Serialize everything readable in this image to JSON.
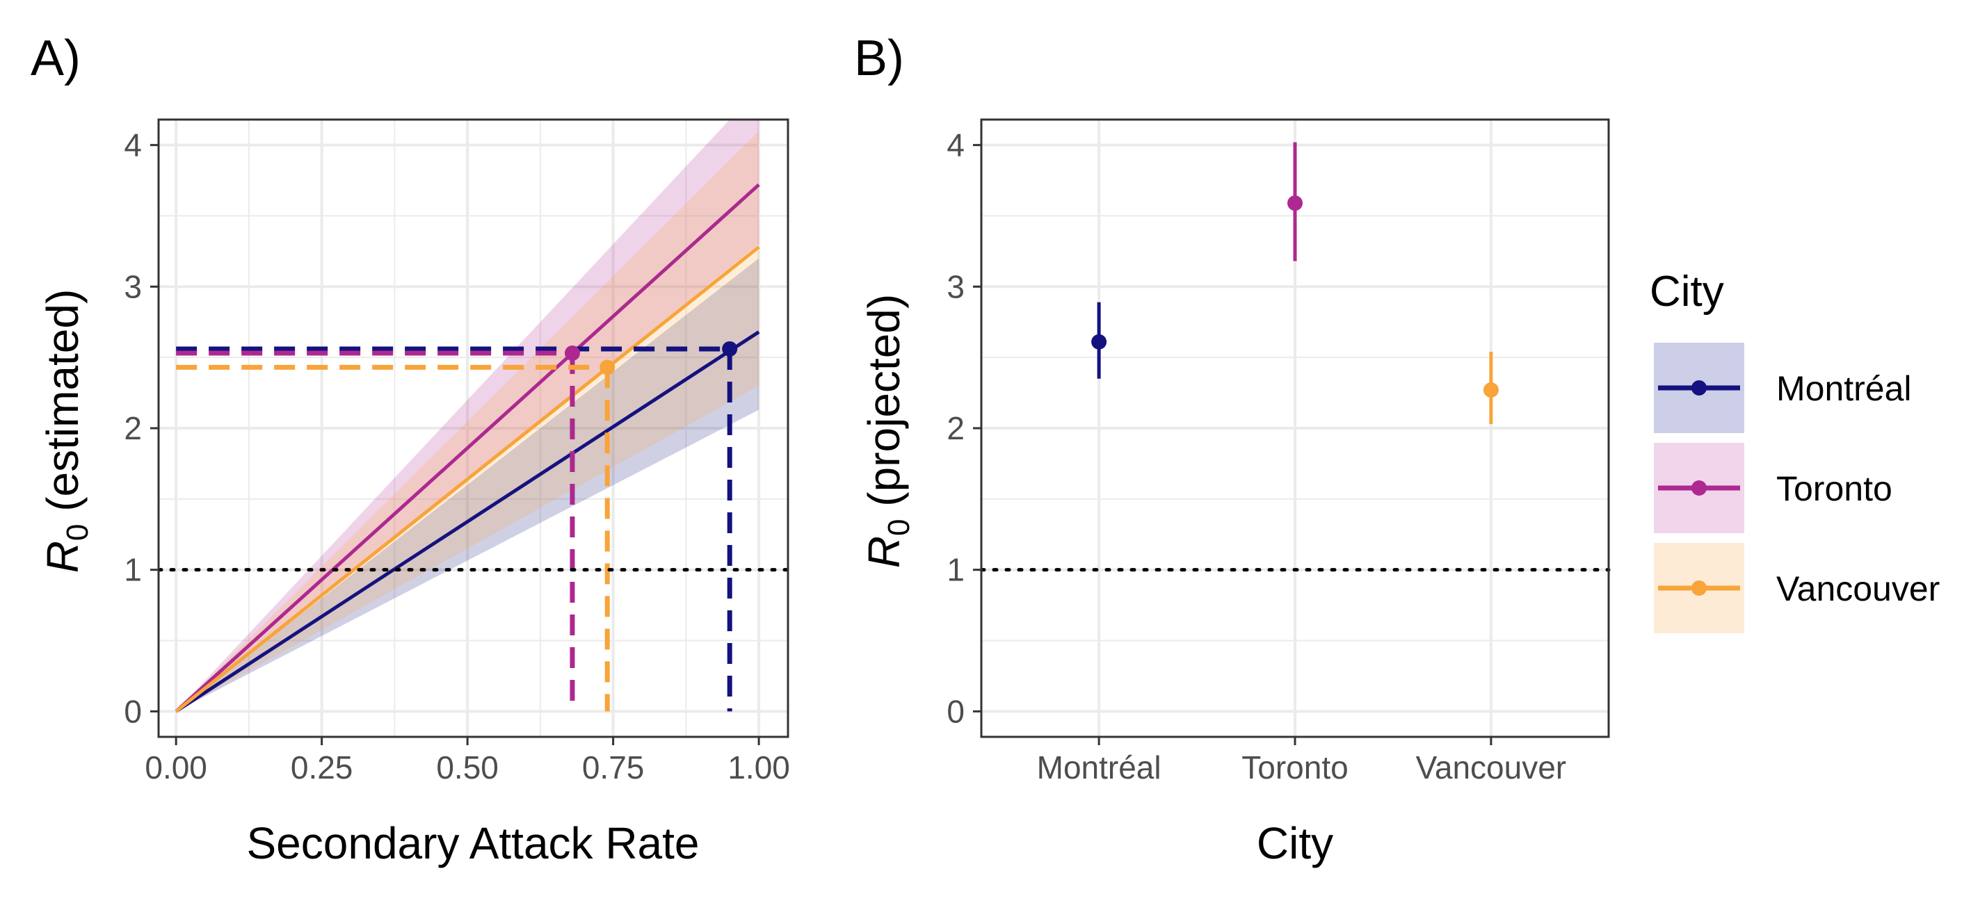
{
  "panels": {
    "a_label": "A)",
    "b_label": "B)"
  },
  "legend": {
    "title": "City",
    "items": [
      {
        "name": "Montréal",
        "color": "#14127f",
        "fill": "#cdcee8"
      },
      {
        "name": "Toronto",
        "color": "#ad2890",
        "fill": "#f0d5eb"
      },
      {
        "name": "Vancouver",
        "color": "#f8a43a",
        "fill": "#fdebd6"
      }
    ]
  },
  "chart_data": [
    {
      "type": "line",
      "panel": "A)",
      "xlabel": "Secondary Attack Rate",
      "ylabel_base": "R",
      "ylabel_sub": "0",
      "ylabel_rest": " (estimated)",
      "xlim": [
        -0.03,
        1.05
      ],
      "ylim": [
        -0.18,
        4.18
      ],
      "xticks": [
        0,
        0.25,
        0.5,
        0.75,
        1
      ],
      "xtick_labels": [
        "0.00",
        "0.25",
        "0.50",
        "0.75",
        "1.00"
      ],
      "yticks": [
        0,
        1,
        2,
        3,
        4
      ],
      "ytick_labels": [
        "0",
        "1",
        "2",
        "3",
        "4"
      ],
      "reference_line_y": 1,
      "grid": true,
      "series": [
        {
          "name": "Montréal",
          "color": "#14127f",
          "x": [
            0,
            1
          ],
          "y": [
            0,
            2.68
          ],
          "ribbon_lower": [
            0,
            2.13
          ],
          "ribbon_upper": [
            0,
            3.2
          ],
          "point": {
            "x": 0.95,
            "y": 2.56
          }
        },
        {
          "name": "Toronto",
          "color": "#ad2890",
          "x": [
            0,
            1
          ],
          "y": [
            0,
            3.72
          ],
          "ribbon_lower": [
            0,
            3.3
          ],
          "ribbon_upper": [
            0,
            4.4
          ],
          "point": {
            "x": 0.68,
            "y": 2.53
          }
        },
        {
          "name": "Vancouver",
          "color": "#f8a43a",
          "x": [
            0,
            1
          ],
          "y": [
            0,
            3.28
          ],
          "ribbon_lower": [
            0,
            2.3
          ],
          "ribbon_upper": [
            0,
            4.1
          ],
          "point": {
            "x": 0.74,
            "y": 2.43
          }
        }
      ]
    },
    {
      "type": "scatter",
      "panel": "B)",
      "xlabel": "City",
      "ylabel_base": "R",
      "ylabel_sub": "0",
      "ylabel_rest": " (projected)",
      "categories": [
        "Montréal",
        "Toronto",
        "Vancouver"
      ],
      "ylim": [
        -0.18,
        4.18
      ],
      "yticks": [
        0,
        1,
        2,
        3,
        4
      ],
      "ytick_labels": [
        "0",
        "1",
        "2",
        "3",
        "4"
      ],
      "reference_line_y": 1,
      "grid": true,
      "series": [
        {
          "name": "Montréal",
          "color": "#14127f",
          "value": 2.61,
          "lower": 2.35,
          "upper": 2.89
        },
        {
          "name": "Toronto",
          "color": "#ad2890",
          "value": 3.59,
          "lower": 3.18,
          "upper": 4.02
        },
        {
          "name": "Vancouver",
          "color": "#f8a43a",
          "value": 2.27,
          "lower": 2.03,
          "upper": 2.54
        }
      ]
    }
  ]
}
